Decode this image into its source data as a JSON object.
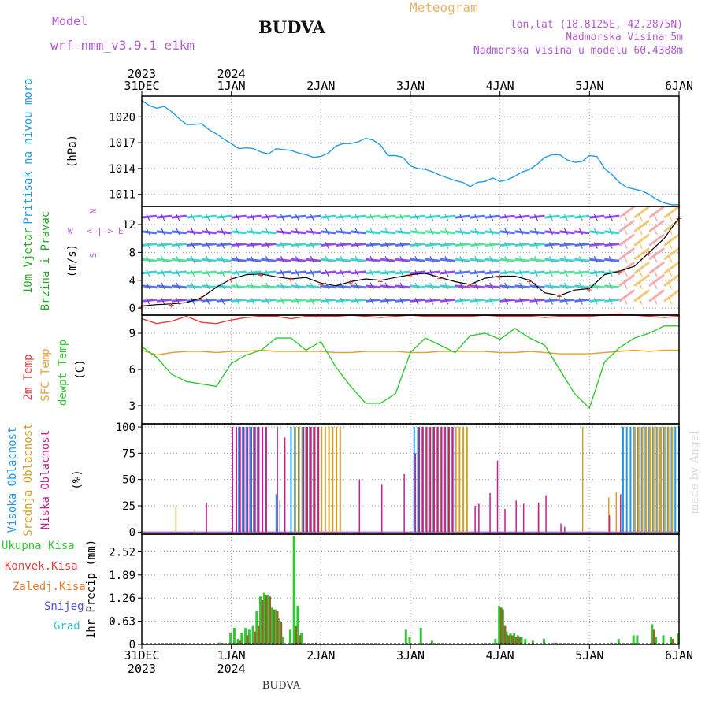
{
  "header": {
    "model_label": "Model",
    "model_name": "wrf—nmm_v3.9.1 e1km",
    "station": "BUDVA",
    "meteogram_label": "Meteogram",
    "lonlat": "lon,lat (18.8125E, 42.2875N)",
    "elevation": "Nadmorska Visina 5m",
    "model_elevation": "Nadmorska Visina u modelu 60.4388m"
  },
  "footer": {
    "station": "BUDVA",
    "watermark": "made by Angel"
  },
  "colors": {
    "pressure": "#1e9be6",
    "temp_2m": "#e63c3c",
    "temp_sfc": "#e6a032",
    "dewpoint": "#32c832",
    "cloud_high": "#1e9be6",
    "cloud_mid": "#d2a028",
    "cloud_low": "#c81e8c",
    "precip_total": "#32c832",
    "precip_convective": "#e63c3c",
    "precip_freezing": "#f07828",
    "precip_snow": "#5050e6",
    "precip_hail": "#32c8c8"
  },
  "time_axis": {
    "top": [
      {
        "day": "31DEC",
        "year": "2023",
        "t": 0
      },
      {
        "day": "1JAN",
        "year": "2024",
        "t": 24
      },
      {
        "day": "2JAN",
        "t": 48
      },
      {
        "day": "3JAN",
        "t": 72
      },
      {
        "day": "4JAN",
        "t": 96
      },
      {
        "day": "5JAN",
        "t": 120
      },
      {
        "day": "6JAN",
        "t": 144
      }
    ],
    "hours_total": 144
  },
  "chart_data": [
    {
      "type": "line",
      "panel": "pressure",
      "ylabel_lines": [
        "Pritisak na nivou mora",
        "(hPa)"
      ],
      "yticks": [
        1011,
        1014,
        1017,
        1020
      ],
      "ylim": [
        1009.6,
        1022.4
      ],
      "x_hours": [
        0,
        2,
        4,
        6,
        8,
        10,
        12,
        14,
        16,
        18,
        20,
        22,
        24,
        26,
        28,
        30,
        32,
        34,
        36,
        38,
        40,
        42,
        44,
        46,
        48,
        50,
        52,
        54,
        56,
        58,
        60,
        62,
        64,
        66,
        68,
        70,
        72,
        74,
        76,
        78,
        80,
        82,
        84,
        86,
        88,
        90,
        92,
        94,
        96,
        98,
        100,
        102,
        104,
        106,
        108,
        110,
        112,
        114,
        116,
        118,
        120,
        122,
        124,
        126,
        128,
        130,
        132,
        134,
        136,
        138,
        140,
        142,
        144
      ],
      "values": [
        1021.9,
        1021.3,
        1021.0,
        1021.2,
        1020.6,
        1019.8,
        1019.1,
        1019.1,
        1019.2,
        1018.5,
        1018.0,
        1017.4,
        1016.9,
        1016.3,
        1016.4,
        1016.3,
        1015.9,
        1015.7,
        1016.3,
        1016.2,
        1016.1,
        1015.8,
        1015.6,
        1015.3,
        1015.4,
        1015.8,
        1016.6,
        1016.9,
        1016.9,
        1017.1,
        1017.5,
        1017.3,
        1016.7,
        1015.5,
        1015.5,
        1015.3,
        1014.3,
        1014.0,
        1013.9,
        1013.6,
        1013.2,
        1012.9,
        1012.6,
        1012.4,
        1011.9,
        1012.4,
        1012.5,
        1012.9,
        1012.5,
        1012.7,
        1013.1,
        1013.6,
        1013.9,
        1014.5,
        1015.3,
        1015.6,
        1015.6,
        1015.0,
        1014.7,
        1014.8,
        1015.5,
        1015.4,
        1014.0,
        1013.3,
        1012.4,
        1011.8,
        1011.6,
        1011.4,
        1011.0,
        1010.4,
        1010.0,
        1009.8,
        1009.8
      ]
    },
    {
      "type": "wind",
      "panel": "wind",
      "ylabel_lines": [
        "10m Vjetar",
        "Brzina i Pravac",
        "(m/s)"
      ],
      "compass": {
        "n": "N",
        "w": "W",
        "e": "E",
        "s": "S"
      },
      "yticks": [
        0,
        4,
        8,
        12
      ],
      "ylim": [
        -1.0,
        14.6
      ],
      "series": [
        {
          "name": "10m speed",
          "x_hours": [
            0,
            4,
            8,
            12,
            16,
            20,
            24,
            28,
            32,
            36,
            40,
            44,
            48,
            52,
            56,
            60,
            64,
            68,
            72,
            76,
            80,
            84,
            88,
            92,
            96,
            100,
            104,
            108,
            112,
            116,
            120,
            124,
            128,
            132,
            136,
            140,
            144
          ],
          "values": [
            0.3,
            0.5,
            0.6,
            0.8,
            1.5,
            3.0,
            4.2,
            4.8,
            4.9,
            4.5,
            4.2,
            4.4,
            3.6,
            3.2,
            3.8,
            4.2,
            4.0,
            4.4,
            4.8,
            5.0,
            4.4,
            3.8,
            3.4,
            4.3,
            4.6,
            4.6,
            4.0,
            2.2,
            1.8,
            2.6,
            2.8,
            4.8,
            5.3,
            6.0,
            8.0,
            10.0,
            13.0
          ]
        }
      ]
    },
    {
      "type": "line",
      "panel": "temperature",
      "ylabel_lines": [
        "2m Temp",
        "SFC Temp",
        "dewpt Temp",
        "(C)"
      ],
      "yticks": [
        3,
        6,
        9
      ],
      "ylim": [
        1.5,
        10.5
      ],
      "x_hours": [
        0,
        4,
        8,
        12,
        16,
        20,
        24,
        28,
        32,
        36,
        40,
        44,
        48,
        52,
        56,
        60,
        64,
        68,
        72,
        76,
        80,
        84,
        88,
        92,
        96,
        100,
        104,
        108,
        112,
        116,
        120,
        124,
        128,
        132,
        136,
        140,
        144
      ],
      "series": [
        {
          "name": "2m Temp",
          "values": [
            10.2,
            9.8,
            10.0,
            10.4,
            9.9,
            9.8,
            10.1,
            10.3,
            10.4,
            10.4,
            10.2,
            10.4,
            10.4,
            10.4,
            10.5,
            10.4,
            10.3,
            10.4,
            10.5,
            10.4,
            10.4,
            10.4,
            10.4,
            10.5,
            10.4,
            10.4,
            10.4,
            10.3,
            10.4,
            10.4,
            10.4,
            10.5,
            10.6,
            10.5,
            10.4,
            10.3,
            10.4
          ]
        },
        {
          "name": "SFC Temp",
          "values": [
            7.6,
            7.2,
            7.4,
            7.5,
            7.5,
            7.4,
            7.5,
            7.5,
            7.6,
            7.5,
            7.5,
            7.5,
            7.5,
            7.4,
            7.4,
            7.5,
            7.5,
            7.5,
            7.4,
            7.4,
            7.5,
            7.5,
            7.5,
            7.5,
            7.4,
            7.4,
            7.5,
            7.4,
            7.3,
            7.3,
            7.3,
            7.4,
            7.5,
            7.6,
            7.5,
            7.6,
            7.6
          ]
        },
        {
          "name": "dewpt Temp",
          "values": [
            7.9,
            7.0,
            5.6,
            5.0,
            4.8,
            4.6,
            6.5,
            7.2,
            7.6,
            8.6,
            8.6,
            7.6,
            8.3,
            6.2,
            4.6,
            3.2,
            3.2,
            4.0,
            7.4,
            8.6,
            8.0,
            7.4,
            8.8,
            9.0,
            8.5,
            9.4,
            8.6,
            8.0,
            6.0,
            4.0,
            2.8,
            6.6,
            7.8,
            8.6,
            9.0,
            9.6,
            9.6
          ]
        }
      ]
    },
    {
      "type": "bar",
      "panel": "cloud",
      "ylabel_lines": [
        "Visoka Oblacnost",
        "Srednja Oblacnost",
        "Niska Oblacnost",
        "(%)"
      ],
      "yticks": [
        0,
        25,
        50,
        75,
        100
      ],
      "ylim": [
        -2,
        103
      ],
      "series": [
        {
          "name": "Visoka Oblacnost",
          "segments": [
            [
              26,
              31,
              100
            ],
            [
              40,
              46,
              100
            ],
            [
              73,
              84,
              100
            ],
            [
              129,
              144,
              100
            ]
          ],
          "extra": [
            [
              27,
              20
            ],
            [
              28,
              44
            ],
            [
              36,
              36
            ],
            [
              37,
              30
            ]
          ]
        },
        {
          "name": "Srednja Oblacnost",
          "segments": [
            [
              41,
              53,
              100
            ],
            [
              75,
              87,
              100
            ],
            [
              132,
              142,
              100
            ]
          ],
          "extra": [
            [
              9,
              24
            ],
            [
              14,
              2
            ],
            [
              118,
              100
            ],
            [
              125,
              33
            ],
            [
              127,
              38
            ]
          ]
        },
        {
          "name": "Niska Oblacnost",
          "segments": [
            [
              25,
              33,
              100
            ],
            [
              43,
              47,
              100
            ],
            [
              74,
              83,
              100
            ]
          ],
          "extra": [
            [
              17,
              28
            ],
            [
              24,
              100
            ],
            [
              33,
              100
            ],
            [
              36,
              100
            ],
            [
              38,
              82
            ],
            [
              38,
              90
            ],
            [
              58,
              50
            ],
            [
              64,
              45
            ],
            [
              70,
              55
            ],
            [
              73,
              75
            ],
            [
              75,
              100
            ],
            [
              81,
              60
            ],
            [
              89,
              25
            ],
            [
              90,
              27
            ],
            [
              93,
              37
            ],
            [
              95,
              68
            ],
            [
              97,
              22
            ],
            [
              100,
              30
            ],
            [
              102,
              27
            ],
            [
              106,
              21
            ],
            [
              106,
              28
            ],
            [
              108,
              35
            ],
            [
              112,
              8
            ],
            [
              113,
              5
            ],
            [
              125,
              16
            ],
            [
              128,
              36
            ]
          ]
        }
      ]
    },
    {
      "type": "bar",
      "panel": "precip",
      "ylabel_lines": [
        "1hr Precip (mm)"
      ],
      "legend": [
        "Ukupna Kisa",
        "Konvek.Kisa",
        "Zaledj.Kisa",
        "Snijeg",
        "Grad"
      ],
      "yticks": [
        0,
        0.63,
        1.26,
        1.89,
        2.52
      ],
      "ylim": [
        0,
        3.0
      ],
      "series": [
        {
          "name": "Ukupna Kisa",
          "bars": [
            [
              21,
              0.05
            ],
            [
              22,
              0.04
            ],
            [
              24,
              0.3
            ],
            [
              25,
              0.45
            ],
            [
              26,
              0.15
            ],
            [
              27,
              0.32
            ],
            [
              28,
              0.45
            ],
            [
              29,
              0.4
            ],
            [
              30,
              0.5
            ],
            [
              31,
              0.9
            ],
            [
              32,
              1.3
            ],
            [
              33,
              1.4
            ],
            [
              34,
              1.35
            ],
            [
              35,
              1.0
            ],
            [
              36,
              0.95
            ],
            [
              37,
              0.7
            ],
            [
              38,
              0.2
            ],
            [
              40,
              0.4
            ],
            [
              41,
              2.95
            ],
            [
              42,
              1.05
            ],
            [
              43,
              0.3
            ],
            [
              47,
              0.05
            ],
            [
              71,
              0.4
            ],
            [
              72,
              0.2
            ],
            [
              75,
              0.45
            ],
            [
              78,
              0.1
            ],
            [
              95,
              0.15
            ],
            [
              96,
              1.05
            ],
            [
              97,
              0.95
            ],
            [
              98,
              0.35
            ],
            [
              99,
              0.3
            ],
            [
              100,
              0.3
            ],
            [
              101,
              0.25
            ],
            [
              102,
              0.2
            ],
            [
              103,
              0.15
            ],
            [
              105,
              0.1
            ],
            [
              108,
              0.15
            ],
            [
              111,
              0.05
            ],
            [
              126,
              0.05
            ],
            [
              128,
              0.15
            ],
            [
              132,
              0.25
            ],
            [
              133,
              0.25
            ],
            [
              137,
              0.55
            ],
            [
              138,
              0.2
            ],
            [
              140,
              0.25
            ],
            [
              142,
              0.2
            ],
            [
              144,
              0.3
            ]
          ]
        },
        {
          "name": "Konvek.Kisa",
          "bars": [
            [
              26,
              0.1
            ],
            [
              28,
              0.25
            ],
            [
              30,
              0.35
            ],
            [
              31,
              0.5
            ],
            [
              32,
              1.2
            ],
            [
              33,
              1.35
            ],
            [
              34,
              1.3
            ],
            [
              35,
              0.95
            ],
            [
              36,
              0.9
            ],
            [
              37,
              0.6
            ],
            [
              41,
              0.5
            ],
            [
              42,
              0.25
            ],
            [
              96,
              1.0
            ],
            [
              97,
              0.5
            ],
            [
              98,
              0.25
            ],
            [
              99,
              0.25
            ],
            [
              100,
              0.2
            ],
            [
              101,
              0.2
            ],
            [
              137,
              0.4
            ],
            [
              142,
              0.15
            ]
          ]
        }
      ]
    }
  ]
}
